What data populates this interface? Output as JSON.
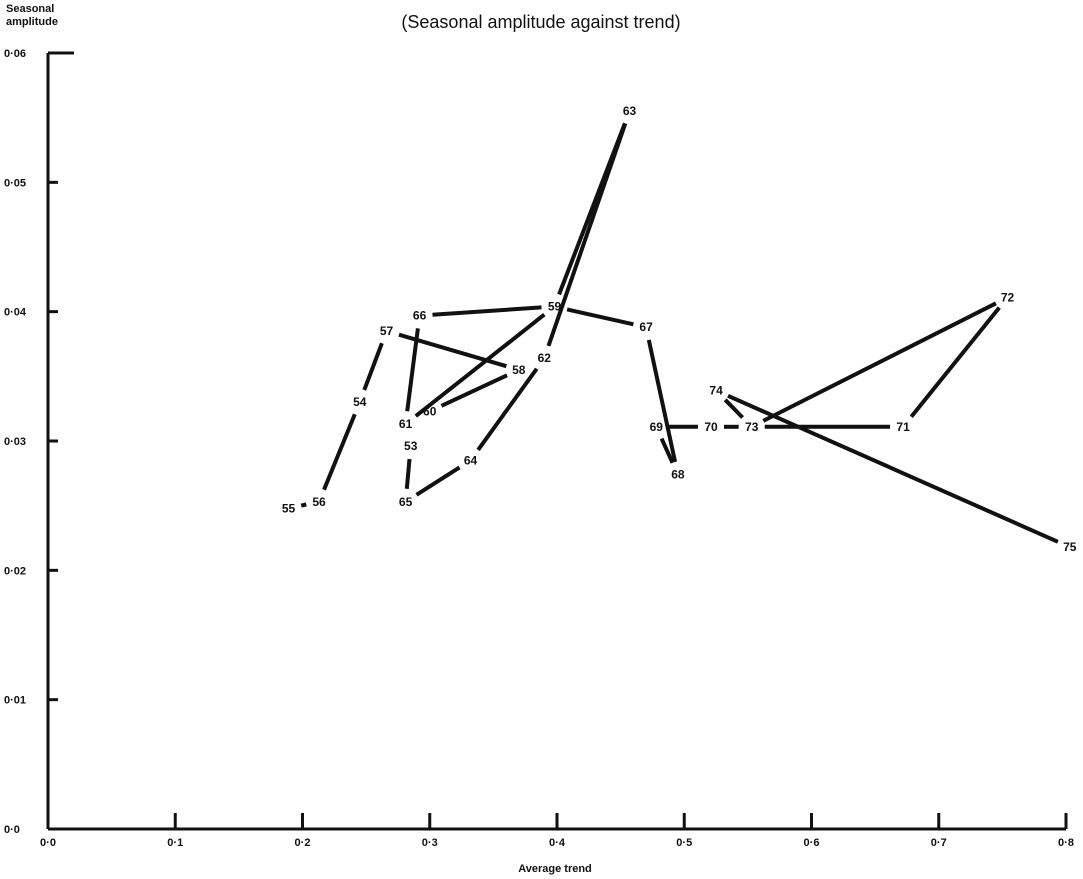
{
  "chart_data": {
    "type": "line",
    "title": "(Seasonal amplitude against trend)",
    "xlabel": "Average trend",
    "ylabel": [
      "Seasonal",
      "amplitude"
    ],
    "xlim": [
      0,
      0.8
    ],
    "ylim": [
      0,
      0.06
    ],
    "xticks": [
      {
        "value": 0,
        "label": "0·0"
      },
      {
        "value": 0.1,
        "label": "0·1"
      },
      {
        "value": 0.2,
        "label": "0·2"
      },
      {
        "value": 0.3,
        "label": "0·3"
      },
      {
        "value": 0.4,
        "label": "0·4"
      },
      {
        "value": 0.5,
        "label": "0·5"
      },
      {
        "value": 0.6,
        "label": "0·6"
      },
      {
        "value": 0.7,
        "label": "0·7"
      },
      {
        "value": 0.8,
        "label": "0·8"
      }
    ],
    "yticks": [
      {
        "value": 0,
        "label": "0·0"
      },
      {
        "value": 0.01,
        "label": "0·01"
      },
      {
        "value": 0.02,
        "label": "0·02"
      },
      {
        "value": 0.03,
        "label": "0·03"
      },
      {
        "value": 0.04,
        "label": "0·04"
      },
      {
        "value": 0.05,
        "label": "0·05"
      },
      {
        "value": 0.06,
        "label": "0·06"
      }
    ],
    "grid": false,
    "points": [
      {
        "label": "53",
        "x": 0.285,
        "y": 0.0296
      },
      {
        "label": "54",
        "x": 0.245,
        "y": 0.033
      },
      {
        "label": "55",
        "x": 0.189,
        "y": 0.0248
      },
      {
        "label": "56",
        "x": 0.213,
        "y": 0.0253
      },
      {
        "label": "57",
        "x": 0.266,
        "y": 0.0385
      },
      {
        "label": "58",
        "x": 0.37,
        "y": 0.0355
      },
      {
        "label": "59",
        "x": 0.398,
        "y": 0.0404
      },
      {
        "label": "60",
        "x": 0.3,
        "y": 0.0323
      },
      {
        "label": "61",
        "x": 0.281,
        "y": 0.0313
      },
      {
        "label": "62",
        "x": 0.39,
        "y": 0.0364
      },
      {
        "label": "63",
        "x": 0.457,
        "y": 0.0555
      },
      {
        "label": "64",
        "x": 0.332,
        "y": 0.0285
      },
      {
        "label": "65",
        "x": 0.281,
        "y": 0.0253
      },
      {
        "label": "66",
        "x": 0.292,
        "y": 0.0397
      },
      {
        "label": "67",
        "x": 0.47,
        "y": 0.0388
      },
      {
        "label": "68",
        "x": 0.495,
        "y": 0.0274
      },
      {
        "label": "69",
        "x": 0.478,
        "y": 0.0311
      },
      {
        "label": "70",
        "x": 0.521,
        "y": 0.0311
      },
      {
        "label": "71",
        "x": 0.672,
        "y": 0.0311
      },
      {
        "label": "72",
        "x": 0.754,
        "y": 0.0411
      },
      {
        "label": "73",
        "x": 0.553,
        "y": 0.0311
      },
      {
        "label": "74",
        "x": 0.525,
        "y": 0.0339
      },
      {
        "label": "75",
        "x": 0.803,
        "y": 0.0218
      }
    ],
    "sequence": [
      "55",
      "56",
      "54",
      "57",
      "58",
      "60",
      "61",
      "53",
      "65",
      "64",
      "62",
      "63",
      "59",
      "66",
      "61",
      "59",
      "67",
      "68",
      "69",
      "70",
      "73",
      "72",
      "71",
      "73",
      "74",
      "75"
    ]
  }
}
